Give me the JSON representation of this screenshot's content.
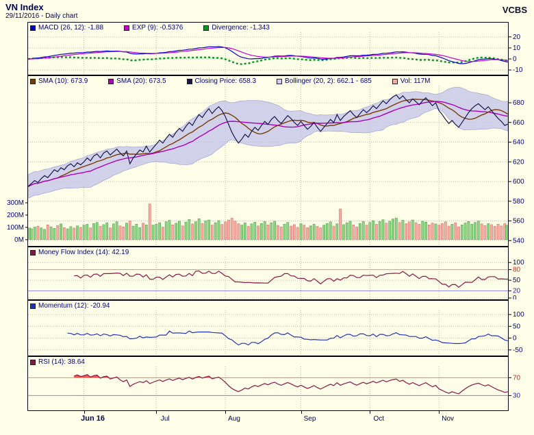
{
  "header": {
    "title": "VN Index",
    "subtitle": "29/11/2016 - Daily chart",
    "brand": "VCBS"
  },
  "colors": {
    "background": "#fefee8",
    "axis_text": "#00007b",
    "grid": "#b9b9a9",
    "macd_line": "#0000cc",
    "exp_line": "#cc00cc",
    "divergence": "#009922",
    "sma10": "#7b3a00",
    "sma20": "#aa00bb",
    "close_line": "#16164e",
    "bollinger_fill": "#c6c6e8",
    "bollinger_edge": "#9a9ace",
    "vol_up_fill": "#8fd483",
    "vol_up_stroke": "#3d9a3d",
    "vol_down_fill": "#f6aca4",
    "vol_down_stroke": "#cc6155",
    "mfi_line": "#8b1545",
    "momentum_line": "#2233bb",
    "rsi_line": "#8b1545",
    "ob_line": "#ee8888",
    "os_line": "#8888ee",
    "ob_text": "#dd2222",
    "os_text": "#2222dd",
    "rsi_fill_high": "#ee3333",
    "rsi_fill_low": "#3333cc"
  },
  "panels": [
    {
      "key": "macd",
      "legend": [
        {
          "name": "macd",
          "color": "#0000cc",
          "label": "MACD (26, 12): -1.88"
        },
        {
          "name": "exp",
          "color": "#cc00cc",
          "label": "EXP (9): -0.5376"
        },
        {
          "name": "divergence",
          "color": "#009922",
          "label": "Divergence: -1.343"
        }
      ],
      "ylim": [
        -13,
        23
      ],
      "yticks": [
        {
          "v": 20,
          "label": "20"
        },
        {
          "v": 10,
          "label": "10"
        },
        {
          "v": 0,
          "label": "0"
        },
        {
          "v": -10,
          "label": "-10"
        }
      ]
    },
    {
      "key": "price",
      "legend": [
        {
          "name": "sma10",
          "color": "#7b3a00",
          "label": "SMA (10): 673.9"
        },
        {
          "name": "sma20",
          "color": "#aa00bb",
          "label": "SMA (20): 673.5"
        },
        {
          "name": "close",
          "color": "#16164e",
          "label": "Closing Price: 658.3"
        },
        {
          "name": "bollinger",
          "color": "#ccccff",
          "label": "Bollinger (20, 2): 662.1 - 685"
        },
        {
          "name": "volume",
          "color": "#f6aca4",
          "label": "Vol: 117M"
        }
      ],
      "ylim": [
        536,
        696
      ],
      "yticks": [
        {
          "v": 680,
          "label": "680"
        },
        {
          "v": 660,
          "label": "660"
        },
        {
          "v": 640,
          "label": "640"
        },
        {
          "v": 620,
          "label": "620"
        },
        {
          "v": 600,
          "label": "600"
        },
        {
          "v": 580,
          "label": "580"
        },
        {
          "v": 560,
          "label": "560"
        },
        {
          "v": 540,
          "label": "540"
        }
      ],
      "volume_ticks": [
        {
          "v": 300,
          "label": "300M"
        },
        {
          "v": 200,
          "label": "200M"
        },
        {
          "v": 100,
          "label": "100M"
        },
        {
          "v": 0,
          "label": "0M"
        }
      ]
    },
    {
      "key": "mfi",
      "legend": [
        {
          "name": "mfi",
          "color": "#8b1545",
          "label": "Money Flow Index (14): 42.19"
        }
      ],
      "ylim": [
        0,
        112
      ],
      "yticks": [
        {
          "v": 100,
          "label": "100"
        },
        {
          "v": 80,
          "label": "80",
          "tone": "ob"
        },
        {
          "v": 50,
          "label": "50"
        },
        {
          "v": 20,
          "label": "20",
          "tone": "os"
        },
        {
          "v": 0,
          "label": "0"
        }
      ],
      "hlines": [
        {
          "v": 80,
          "tone": "ob"
        },
        {
          "v": 20,
          "tone": "os"
        }
      ]
    },
    {
      "key": "momentum",
      "legend": [
        {
          "name": "momentum",
          "color": "#2233bb",
          "label": "Momentum (12): -20.94"
        }
      ],
      "ylim": [
        -68,
        112
      ],
      "yticks": [
        {
          "v": 100,
          "label": "100"
        },
        {
          "v": 50,
          "label": "50"
        },
        {
          "v": 0,
          "label": "0"
        },
        {
          "v": -50,
          "label": "-50"
        }
      ]
    },
    {
      "key": "rsi",
      "legend": [
        {
          "name": "rsi",
          "color": "#8b1545",
          "label": "RSI (14): 38.64"
        }
      ],
      "ylim": [
        0,
        92
      ],
      "yticks": [
        {
          "v": 70,
          "label": "70",
          "tone": "ob"
        },
        {
          "v": 30,
          "label": "30",
          "tone": "os"
        }
      ],
      "hlines": [
        {
          "v": 70,
          "tone": "ob"
        },
        {
          "v": 30,
          "tone": "os"
        }
      ],
      "band_fills": {
        "above": 70,
        "below": 30
      }
    }
  ],
  "chart_data": {
    "type": "line",
    "title": "VN Index daily close with volume, Bollinger (20,2), SMA 10/20, MACD (26,12), Money Flow Index (14), Momentum (12) and RSI (14)",
    "x_axis": {
      "points": 147,
      "month_ticks": [
        {
          "label": "Jun 16",
          "index": 17,
          "bold": true
        },
        {
          "label": "Jul",
          "index": 39
        },
        {
          "label": "Aug",
          "index": 60
        },
        {
          "label": "Sep",
          "index": 83
        },
        {
          "label": "Oct",
          "index": 104
        },
        {
          "label": "Nov",
          "index": 125
        }
      ]
    },
    "ylim_price": [
      536,
      696
    ],
    "close": [
      595,
      598,
      601,
      599,
      603,
      606,
      604,
      608,
      612,
      610,
      614,
      612,
      616,
      618,
      615,
      619,
      617,
      620,
      624,
      621,
      626,
      628,
      624,
      629,
      631,
      627,
      630,
      633,
      629,
      626,
      631,
      618,
      624,
      628,
      632,
      630,
      636,
      630,
      634,
      638,
      642,
      639,
      644,
      648,
      645,
      650,
      654,
      651,
      656,
      660,
      657,
      663,
      668,
      665,
      670,
      674,
      669,
      673,
      676,
      672,
      666,
      658,
      650,
      644,
      639,
      643,
      648,
      645,
      651,
      655,
      652,
      657,
      661,
      658,
      663,
      666,
      662,
      659,
      663,
      667,
      664,
      660,
      657,
      661,
      657,
      653,
      656,
      660,
      655,
      651,
      655,
      659,
      663,
      660,
      668,
      662,
      666,
      669,
      672,
      668,
      665,
      669,
      673,
      670,
      673,
      677,
      674,
      678,
      682,
      679,
      683,
      686,
      688,
      684,
      687,
      683,
      680,
      684,
      681,
      678,
      682,
      685,
      681,
      677,
      680,
      672,
      668,
      663,
      659,
      662,
      658,
      655,
      660,
      665,
      670,
      674,
      677,
      679,
      676,
      673,
      676,
      672,
      668,
      664,
      661,
      657,
      658.3
    ],
    "volume_millions": [
      95,
      88,
      102,
      110,
      96,
      84,
      120,
      105,
      92,
      115,
      128,
      98,
      88,
      106,
      94,
      112,
      100,
      118,
      125,
      96,
      132,
      140,
      108,
      122,
      138,
      96,
      128,
      146,
      112,
      104,
      135,
      152,
      110,
      126,
      98,
      134,
      120,
      290,
      118,
      125,
      138,
      102,
      146,
      158,
      120,
      134,
      150,
      112,
      142,
      165,
      128,
      146,
      170,
      132,
      152,
      160,
      118,
      138,
      155,
      124,
      145,
      160,
      175,
      150,
      130,
      118,
      136,
      108,
      128,
      142,
      112,
      132,
      148,
      120,
      138,
      150,
      116,
      104,
      126,
      140,
      110,
      122,
      100,
      130,
      118,
      98,
      112,
      126,
      108,
      96,
      118,
      132,
      145,
      110,
      128,
      250,
      122,
      138,
      150,
      120,
      104,
      132,
      148,
      118,
      140,
      155,
      125,
      148,
      162,
      135,
      150,
      168,
      175,
      140,
      158,
      130,
      145,
      160,
      138,
      125,
      150,
      142,
      120,
      135,
      128,
      118,
      132,
      145,
      110,
      125,
      138,
      105,
      120,
      135,
      148,
      126,
      140,
      152,
      128,
      115,
      130,
      122,
      108,
      126,
      112,
      130,
      117
    ],
    "latest": {
      "close": 658.3,
      "sma10": 673.9,
      "sma20": 673.5,
      "bollinger_low": 662.1,
      "bollinger_high": 685,
      "volume": "117M",
      "macd": -1.88,
      "exp": -0.5376,
      "divergence": -1.343,
      "mfi": 42.19,
      "momentum": -20.94,
      "rsi": 38.64
    }
  }
}
